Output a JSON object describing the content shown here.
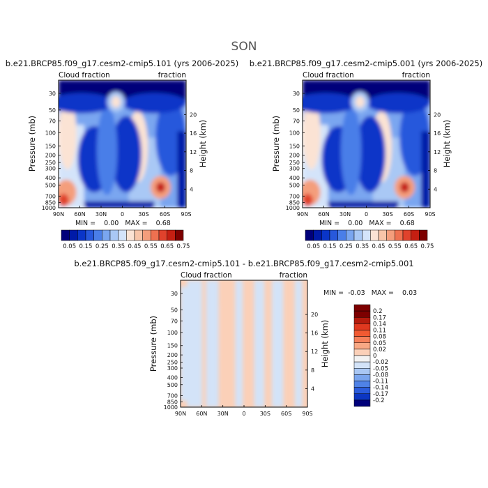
{
  "figure": {
    "title": "SON"
  },
  "chart_data": [
    {
      "type": "heatmap",
      "title": "b.e21.BRCP85.f09_g17.cesm2-cmip5.101 (yrs 2006-2025)",
      "subtitle_left": "Cloud fraction",
      "subtitle_right": "fraction",
      "xlabel": "",
      "ylabel": "Pressure (mb)",
      "ylabel_right": "Height (km)",
      "x_ticks": [
        "90N",
        "60N",
        "30N",
        "0",
        "30S",
        "60S",
        "90S"
      ],
      "y_ticks": [
        "1000",
        "850",
        "700",
        "500",
        "400",
        "300",
        "250",
        "200",
        "150",
        "100",
        "70",
        "50",
        "30"
      ],
      "y_ticks_right": [
        "4",
        "8",
        "12",
        "16",
        "20"
      ],
      "min_max_text": "MIN =    0.00   MAX =    0.68",
      "colorbar_labels": [
        "0.05",
        "0.15",
        "0.25",
        "0.35",
        "0.45",
        "0.55",
        "0.65",
        "0.75"
      ]
    },
    {
      "type": "heatmap",
      "title": "b.e21.BRCP85.f09_g17.cesm2-cmip5.001 (yrs 2006-2025)",
      "subtitle_left": "Cloud fraction",
      "subtitle_right": "fraction",
      "xlabel": "",
      "ylabel": "Pressure (mb)",
      "ylabel_right": "Height (km)",
      "x_ticks": [
        "90N",
        "60N",
        "30N",
        "0",
        "30S",
        "60S",
        "90S"
      ],
      "y_ticks": [
        "1000",
        "850",
        "700",
        "500",
        "400",
        "300",
        "250",
        "200",
        "150",
        "100",
        "70",
        "50",
        "30"
      ],
      "y_ticks_right": [
        "4",
        "8",
        "12",
        "16",
        "20"
      ],
      "min_max_text": "MIN =    0.00   MAX =    0.68",
      "colorbar_labels": [
        "0.05",
        "0.15",
        "0.25",
        "0.35",
        "0.45",
        "0.55",
        "0.65",
        "0.75"
      ]
    },
    {
      "type": "heatmap",
      "title": "b.e21.BRCP85.f09_g17.cesm2-cmip5.101 - b.e21.BRCP85.f09_g17.cesm2-cmip5.001",
      "subtitle_left": "Cloud fraction",
      "subtitle_right": "fraction",
      "xlabel": "",
      "ylabel": "Pressure (mb)",
      "ylabel_right": "Height (km)",
      "x_ticks": [
        "90N",
        "60N",
        "30N",
        "0",
        "30S",
        "60S",
        "90S"
      ],
      "y_ticks": [
        "1000",
        "850",
        "700",
        "500",
        "400",
        "300",
        "250",
        "200",
        "150",
        "100",
        "70",
        "50",
        "30"
      ],
      "y_ticks_right": [
        "4",
        "8",
        "12",
        "16",
        "20"
      ],
      "min_max_text": "MIN =  -0.03   MAX =    0.03",
      "colorbar_labels": [
        "0.2",
        "0.17",
        "0.14",
        "0.11",
        "0.08",
        "0.05",
        "0.02",
        "0",
        "-0.02",
        "-0.05",
        "-0.08",
        "-0.11",
        "-0.14",
        "-0.17",
        "-0.2"
      ]
    }
  ],
  "colors": {
    "cb_main": [
      "#00007a",
      "#001aa8",
      "#0a35c8",
      "#2758dc",
      "#4a7ee8",
      "#7aa6f0",
      "#a9c8f5",
      "#d4e4fa",
      "#fbe3d4",
      "#f8c5a9",
      "#f49e7c",
      "#ee7150",
      "#e0422c",
      "#c51f12",
      "#7d0000"
    ],
    "cb_diff": [
      "#7d0000",
      "#b51b0d",
      "#e0381f",
      "#f15a32",
      "#f5805a",
      "#f8a884",
      "#fbd0b8",
      "#f2f2f2",
      "#d3e3f8",
      "#a9c7f4",
      "#7aa5ee",
      "#4f82e6",
      "#2b5cdc",
      "#0c36c2",
      "#00007a"
    ]
  }
}
